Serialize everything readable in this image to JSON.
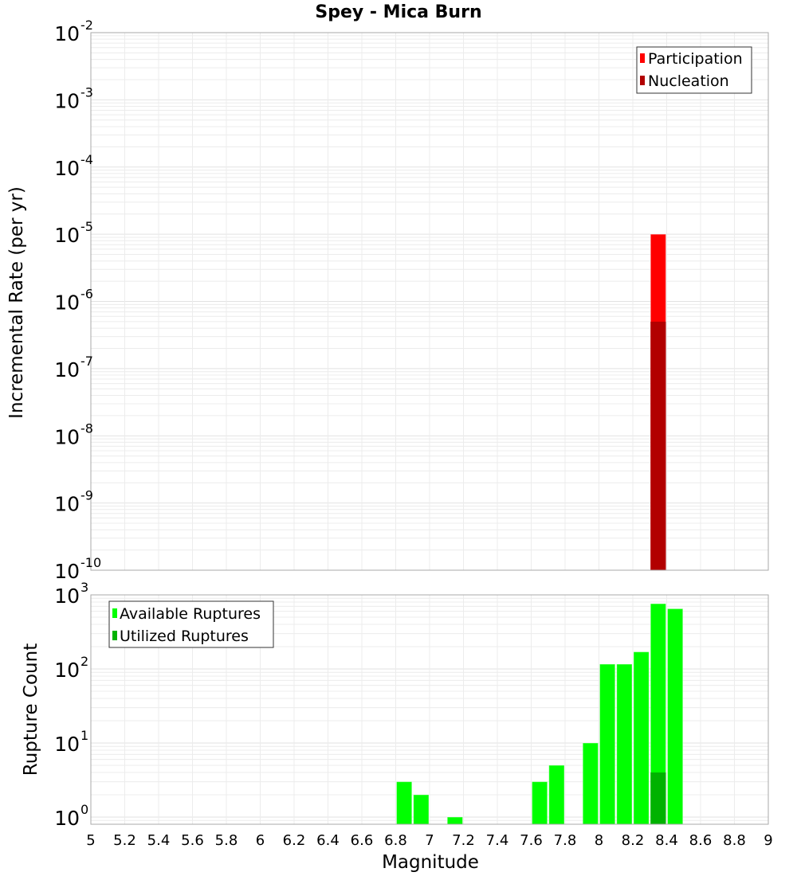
{
  "chart_data": [
    {
      "type": "bar",
      "title": "Spey - Mica Burn",
      "xlabel": "",
      "ylabel": "Incremental Rate (per yr)",
      "xlim": [
        5,
        9
      ],
      "ylim": [
        1e-10,
        0.01
      ],
      "yscale": "log",
      "grid": true,
      "legend_position": "upper right",
      "bin_width": 0.1,
      "series": [
        {
          "name": "Participation",
          "color": "#ff0000",
          "x": [
            8.35
          ],
          "values": [
            1e-05
          ]
        },
        {
          "name": "Nucleation",
          "color": "#b20000",
          "x": [
            8.35
          ],
          "values": [
            5e-07
          ]
        }
      ],
      "ytick_exponents": [
        -2,
        -3,
        -4,
        -5,
        -6,
        -7,
        -8,
        -9,
        -10
      ]
    },
    {
      "type": "bar",
      "title": "",
      "xlabel": "Magnitude",
      "ylabel": "Rupture Count",
      "xlim": [
        5,
        9
      ],
      "ylim": [
        0.8,
        1000
      ],
      "yscale": "log",
      "grid": true,
      "legend_position": "upper left",
      "bin_width": 0.1,
      "series": [
        {
          "name": "Available Ruptures",
          "color": "#00ff00",
          "x": [
            6.85,
            6.95,
            7.15,
            7.65,
            7.75,
            7.95,
            8.05,
            8.15,
            8.25,
            8.35,
            8.45
          ],
          "values": [
            3,
            2,
            1,
            3,
            5,
            10,
            116,
            116,
            170,
            760,
            650
          ]
        },
        {
          "name": "Utilized Ruptures",
          "color": "#00b200",
          "x": [
            8.35
          ],
          "values": [
            4
          ]
        }
      ],
      "ytick_exponents": [
        3,
        2,
        1,
        0
      ],
      "xticks": [
        "5",
        "5.2",
        "5.4",
        "5.6",
        "5.8",
        "6",
        "6.2",
        "6.4",
        "6.6",
        "6.8",
        "7",
        "7.2",
        "7.4",
        "7.6",
        "7.8",
        "8",
        "8.2",
        "8.4",
        "8.6",
        "8.8",
        "9"
      ]
    }
  ],
  "page": {
    "title": "Spey - Mica Burn",
    "top_ylabel": "Incremental Rate (per yr)",
    "bottom_ylabel": "Rupture Count",
    "xlabel": "Magnitude",
    "legend_top": [
      "Participation",
      "Nucleation"
    ],
    "legend_bottom": [
      "Available Ruptures",
      "Utilized Ruptures"
    ]
  }
}
